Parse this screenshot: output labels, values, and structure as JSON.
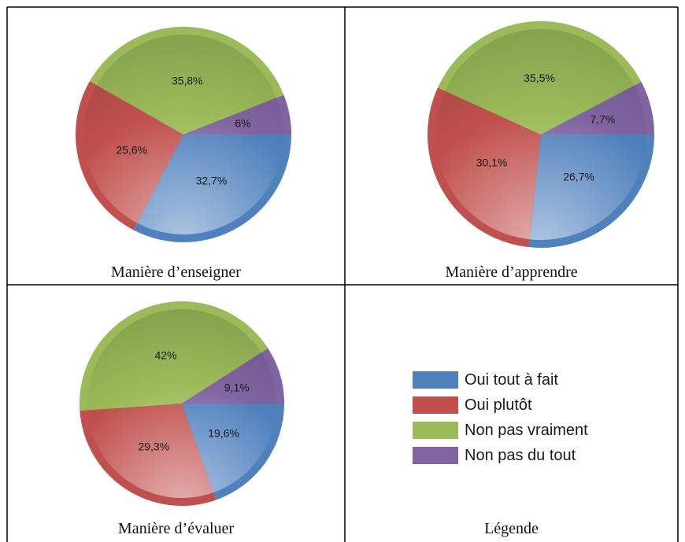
{
  "colors": {
    "blue": "#4f81bd",
    "red": "#c0504d",
    "green": "#9bbb59",
    "purple": "#8064a2"
  },
  "legend": {
    "title": "Légende",
    "items": [
      {
        "label": "Oui tout à fait",
        "color": "#4f81bd"
      },
      {
        "label": "Oui plutôt",
        "color": "#c0504d"
      },
      {
        "label": "Non pas vraiment",
        "color": "#9bbb59"
      },
      {
        "label": "Non pas du tout",
        "color": "#8064a2"
      }
    ]
  },
  "chart_data": [
    {
      "type": "pie",
      "title": "Manière d’enseigner",
      "categories": [
        "Oui tout à fait",
        "Oui plutôt",
        "Non pas vraiment",
        "Non pas du tout"
      ],
      "values": [
        32.7,
        25.6,
        35.8,
        6
      ],
      "labels": [
        "32,7%",
        "25,6%",
        "35,8%",
        "6%"
      ]
    },
    {
      "type": "pie",
      "title": "Manière d’apprendre",
      "categories": [
        "Oui tout à fait",
        "Oui plutôt",
        "Non pas vraiment",
        "Non pas du tout"
      ],
      "values": [
        26.7,
        30.1,
        35.5,
        7.7
      ],
      "labels": [
        "26,7%",
        "30,1%",
        "35,5%",
        "7,7%"
      ]
    },
    {
      "type": "pie",
      "title": "Manière d’évaluer",
      "categories": [
        "Oui tout à fait",
        "Oui plutôt",
        "Non pas vraiment",
        "Non pas du tout"
      ],
      "values": [
        19.6,
        29.3,
        42,
        9.1
      ],
      "labels": [
        "19,6%",
        "29,3%",
        "42%",
        "9,1%"
      ]
    }
  ]
}
